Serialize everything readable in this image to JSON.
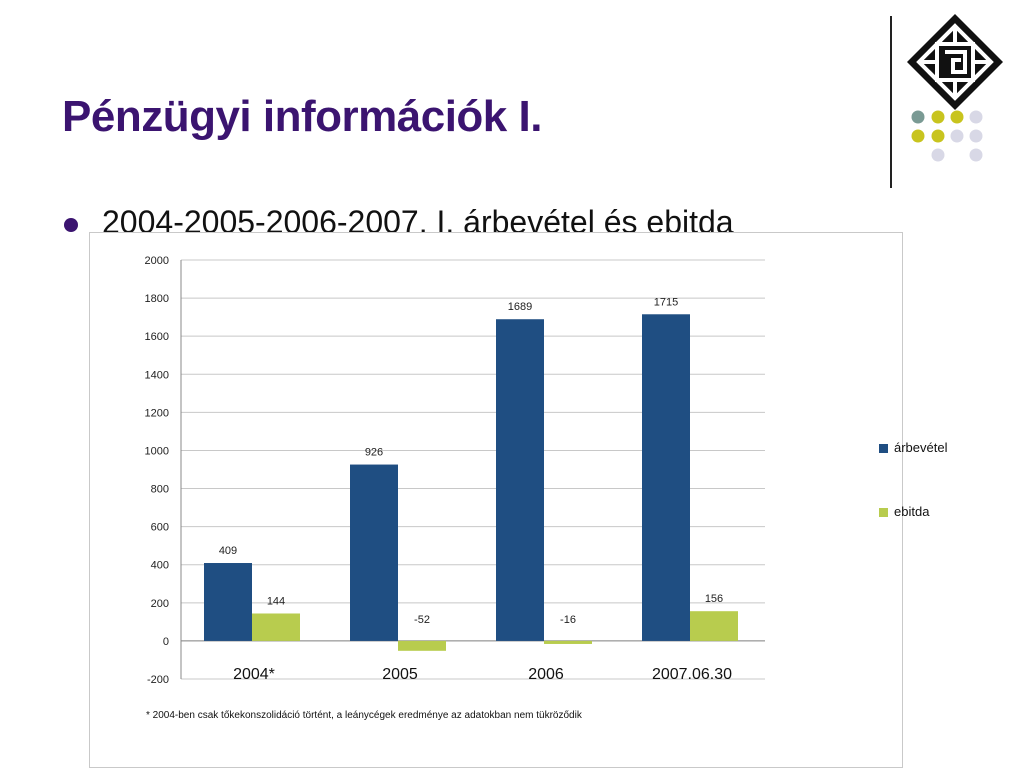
{
  "slide": {
    "title": "Pénzügyi információk I.",
    "bullet": "2004-2005-2006-2007. I. árbevétel és ebitda",
    "footnote": "* 2004-ben csak tőkekonszolidáció történt, a leánycégek eredménye az adatokban nem tükröződik"
  },
  "colors": {
    "title": "#3b1470",
    "arbevetel": "#1f4e82",
    "ebitda": "#b8cc4e"
  },
  "chart_data": {
    "type": "bar",
    "categories": [
      "2004*",
      "2005",
      "2006",
      "2007.06.30"
    ],
    "series": [
      {
        "name": "árbevétel",
        "values": [
          409,
          926,
          1689,
          1715
        ],
        "labels": [
          "409",
          "926",
          "1689",
          "1715"
        ]
      },
      {
        "name": "ebitda",
        "values": [
          144,
          -52,
          -16,
          156
        ],
        "labels": [
          "144",
          "-52",
          "-16",
          "156"
        ]
      }
    ],
    "yticks": [
      "2000",
      "1800",
      "1600",
      "1400",
      "1200",
      "1000",
      "800",
      "600",
      "400",
      "200",
      "0",
      "-200"
    ],
    "ylim": [
      -200,
      2000
    ],
    "grid": true,
    "legend_position": "right"
  }
}
